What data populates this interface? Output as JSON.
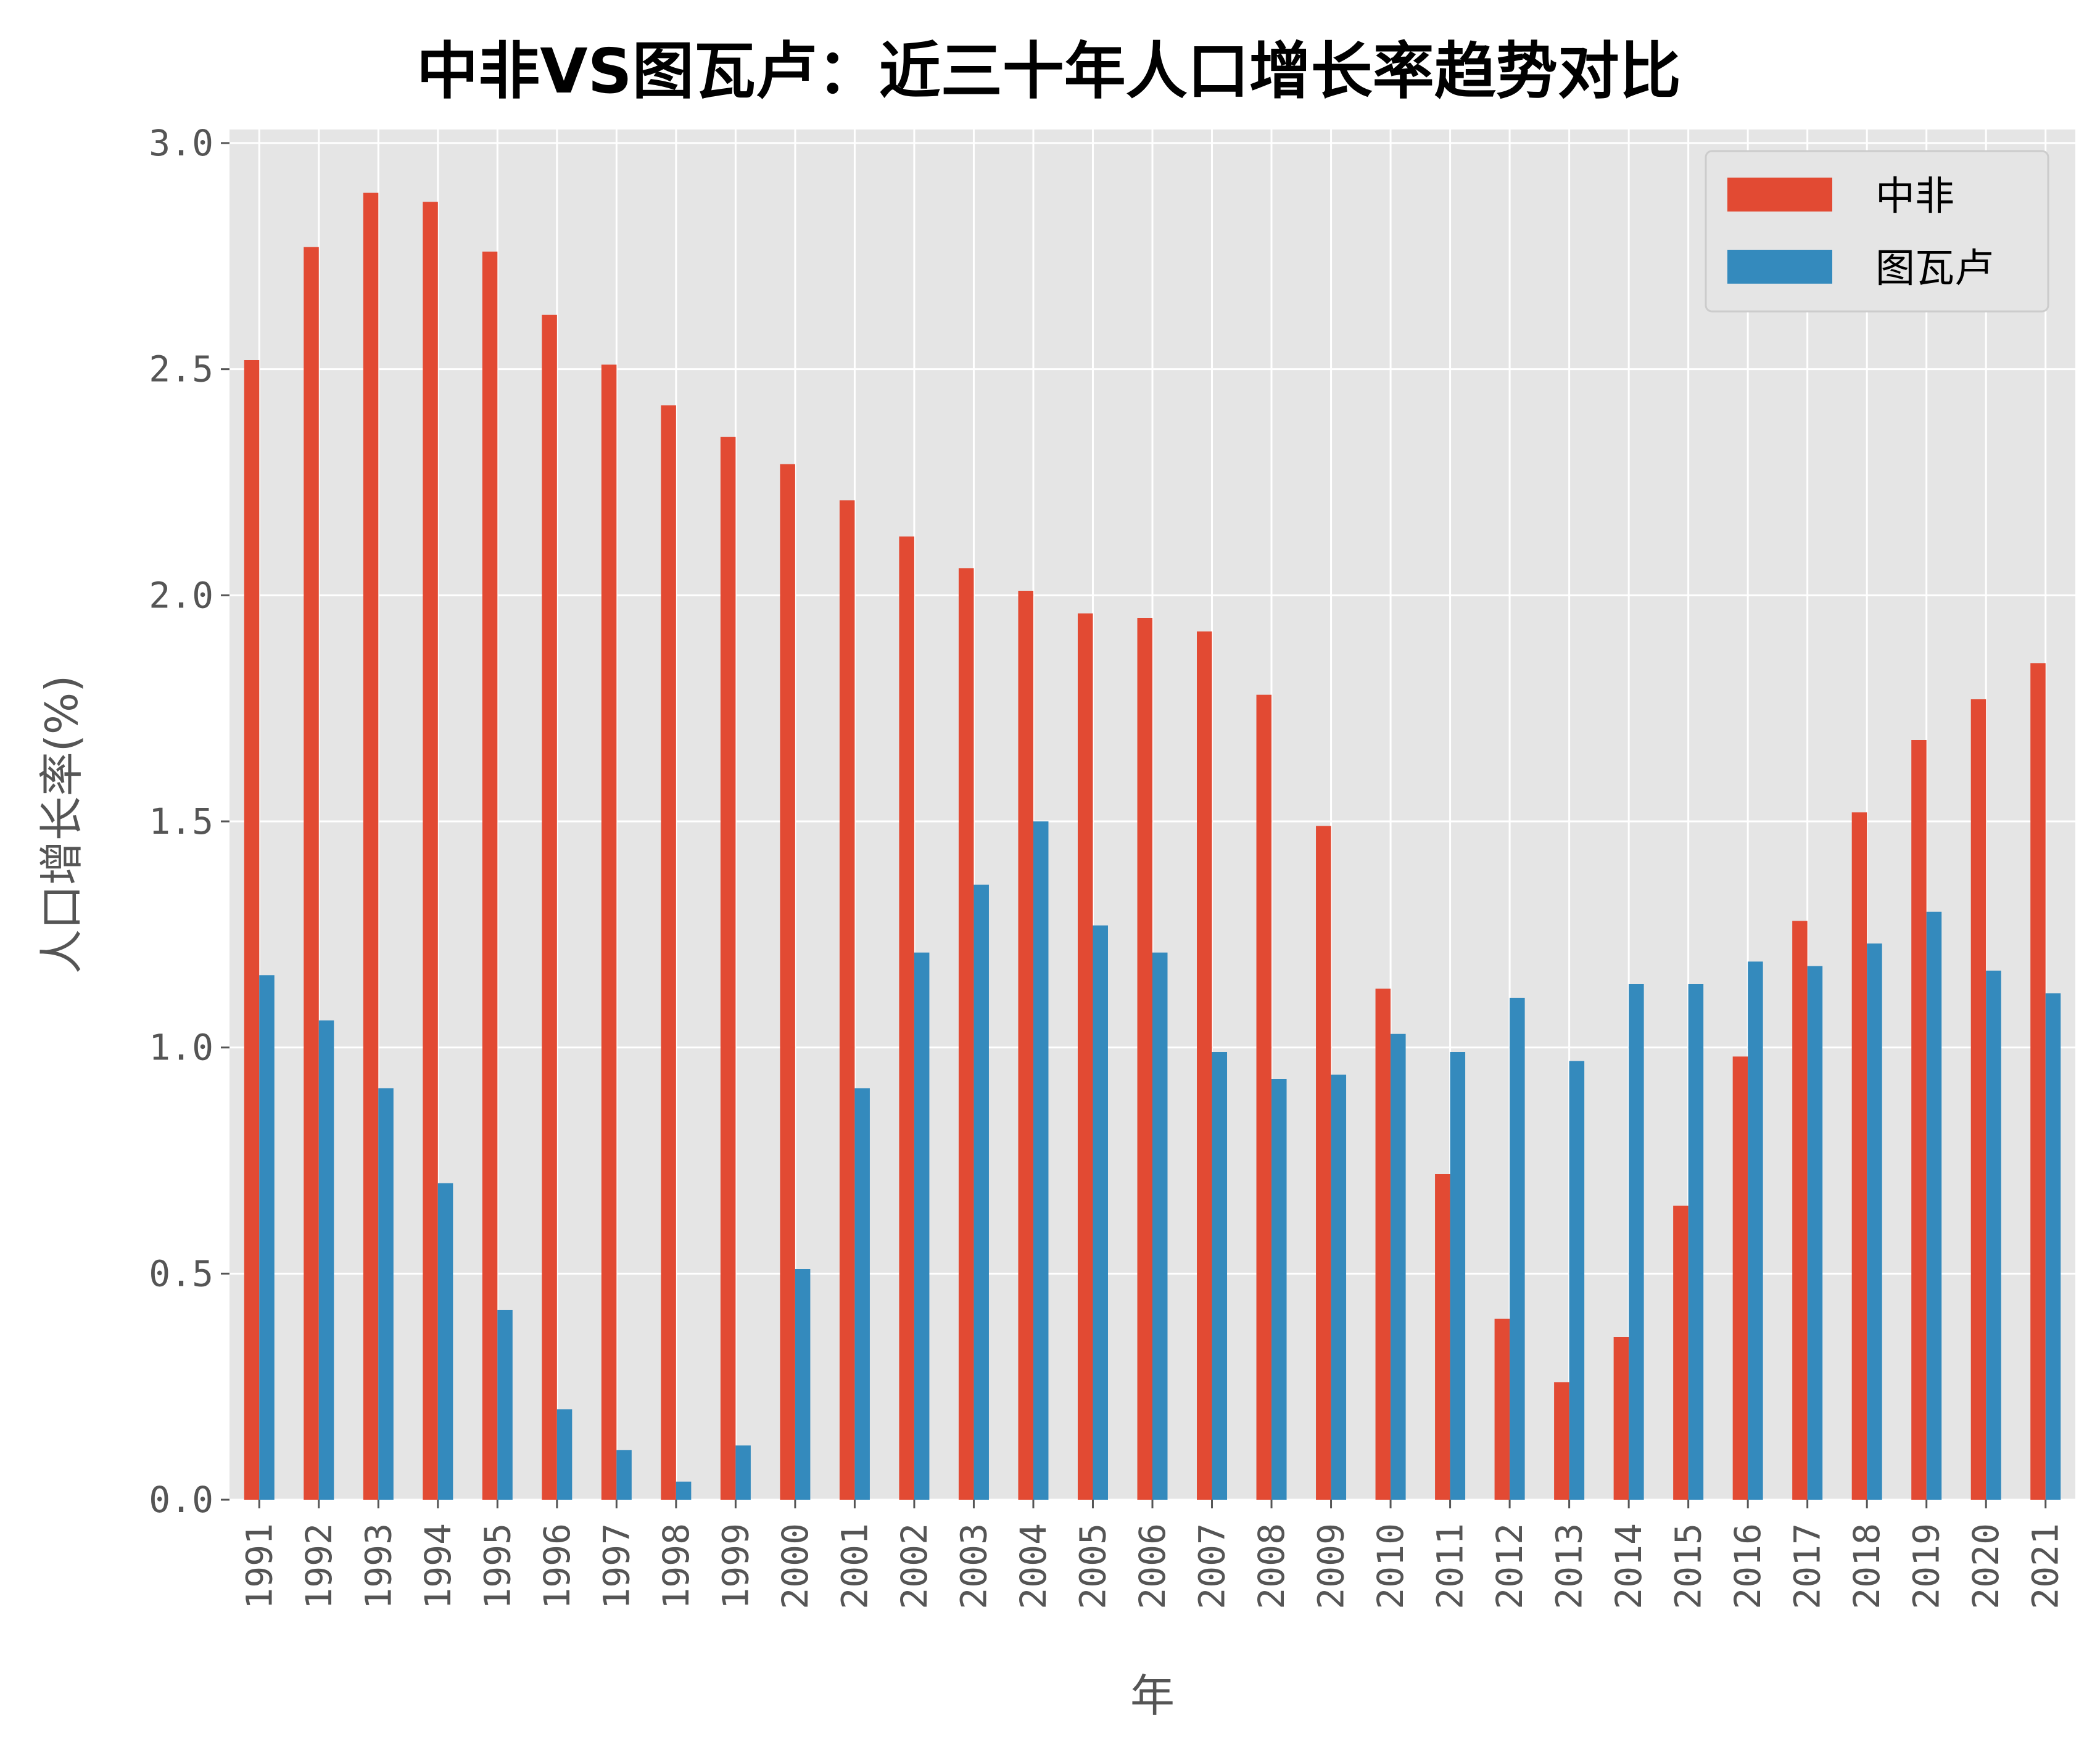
{
  "colors": {
    "background": "#ffffff",
    "plot_background": "#e5e5e5",
    "grid": "#ffffff",
    "tick": "#555555",
    "series_1": "#e24a33",
    "series_2": "#348abd"
  },
  "chart_data": {
    "type": "bar",
    "title": "中非VS图瓦卢：近三十年人口增长率趋势对比",
    "xlabel": "年",
    "ylabel": "人口增长率(%)",
    "ylim": [
      0,
      3.0
    ],
    "yticks": [
      "0.0",
      "0.5",
      "1.0",
      "1.5",
      "2.0",
      "2.5",
      "3.0"
    ],
    "grid": true,
    "legend_position": "top-right",
    "categories": [
      "1991",
      "1992",
      "1993",
      "1994",
      "1995",
      "1996",
      "1997",
      "1998",
      "1999",
      "2000",
      "2001",
      "2002",
      "2003",
      "2004",
      "2005",
      "2006",
      "2007",
      "2008",
      "2009",
      "2010",
      "2011",
      "2012",
      "2013",
      "2014",
      "2015",
      "2016",
      "2017",
      "2018",
      "2019",
      "2020",
      "2021"
    ],
    "series": [
      {
        "name": "中非",
        "color": "#e24a33",
        "values": [
          2.52,
          2.77,
          2.89,
          2.87,
          2.76,
          2.62,
          2.51,
          2.42,
          2.35,
          2.29,
          2.21,
          2.13,
          2.06,
          2.01,
          1.96,
          1.95,
          1.92,
          1.78,
          1.49,
          1.13,
          0.72,
          0.4,
          0.26,
          0.36,
          0.65,
          0.98,
          1.28,
          1.52,
          1.68,
          1.77,
          1.85
        ]
      },
      {
        "name": "图瓦卢",
        "color": "#348abd",
        "values": [
          1.16,
          1.06,
          0.91,
          0.7,
          0.42,
          0.2,
          0.11,
          0.04,
          0.12,
          0.51,
          0.91,
          1.21,
          1.36,
          1.5,
          1.27,
          1.21,
          0.99,
          0.93,
          0.94,
          1.03,
          0.99,
          1.11,
          0.97,
          1.14,
          1.14,
          1.19,
          1.18,
          1.23,
          1.3,
          1.17,
          1.12
        ]
      }
    ]
  }
}
